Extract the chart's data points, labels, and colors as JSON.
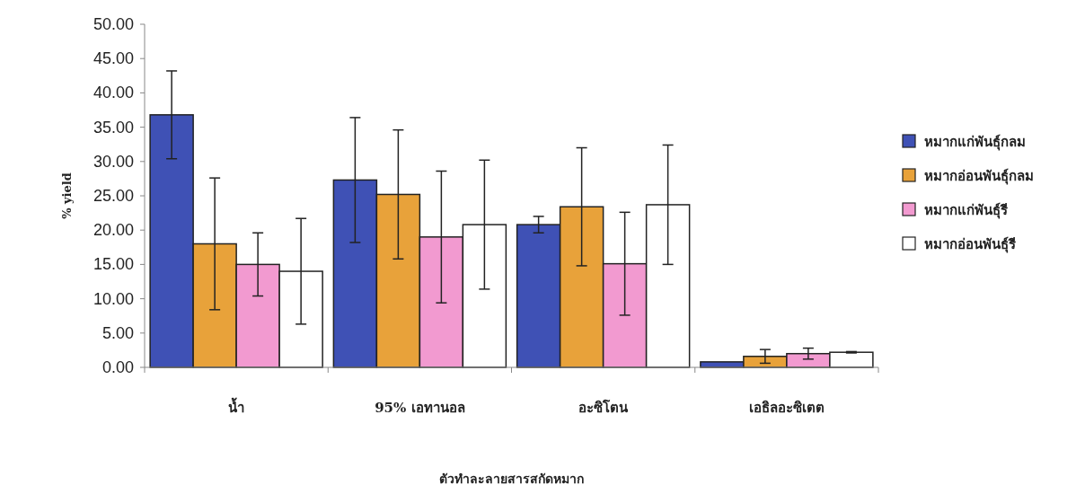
{
  "chart_data": {
    "type": "bar",
    "xlabel": "ตัวทำละลายสารสกัดหมาก",
    "ylabel": "% yield",
    "categories": [
      "น้ำ",
      "95% เอทานอล",
      "อะซิโตน",
      "เอธิลอะซิเตต"
    ],
    "series": [
      {
        "name": "หมากแก่พันธุ์กลม",
        "color": "#3f51b5",
        "values": [
          36.8,
          27.3,
          20.8,
          0.8
        ],
        "errors": [
          6.4,
          9.1,
          1.2,
          null
        ]
      },
      {
        "name": "หมากอ่อนพันธุ์กลม",
        "color": "#e8a23a",
        "values": [
          18.0,
          25.2,
          23.4,
          1.6
        ],
        "errors": [
          9.6,
          9.4,
          8.6,
          1.0
        ]
      },
      {
        "name": "หมากแก่พันธุ์รี",
        "color": "#f29ad0",
        "values": [
          15.0,
          19.0,
          15.1,
          2.0
        ],
        "errors": [
          4.6,
          9.6,
          7.5,
          0.8
        ]
      },
      {
        "name": "หมากอ่อนพันธุ์รี",
        "color": "#ffffff",
        "values": [
          14.0,
          20.8,
          23.7,
          2.2
        ],
        "errors": [
          7.7,
          9.4,
          8.7,
          0.1
        ]
      }
    ],
    "ylim": [
      0,
      50
    ],
    "yticks": [
      {
        "value": 0,
        "label": "0.00"
      },
      {
        "value": 5,
        "label": "5.00"
      },
      {
        "value": 10,
        "label": "10.00"
      },
      {
        "value": 15,
        "label": "15.00"
      },
      {
        "value": 20,
        "label": "20.00"
      },
      {
        "value": 25,
        "label": "25.00"
      },
      {
        "value": 30,
        "label": "30.00"
      },
      {
        "value": 35,
        "label": "35.00"
      },
      {
        "value": 40,
        "label": "40.00"
      },
      {
        "value": 45,
        "label": "45.00"
      },
      {
        "value": 50,
        "label": "50.00"
      }
    ],
    "grid": false,
    "legend": "right"
  }
}
